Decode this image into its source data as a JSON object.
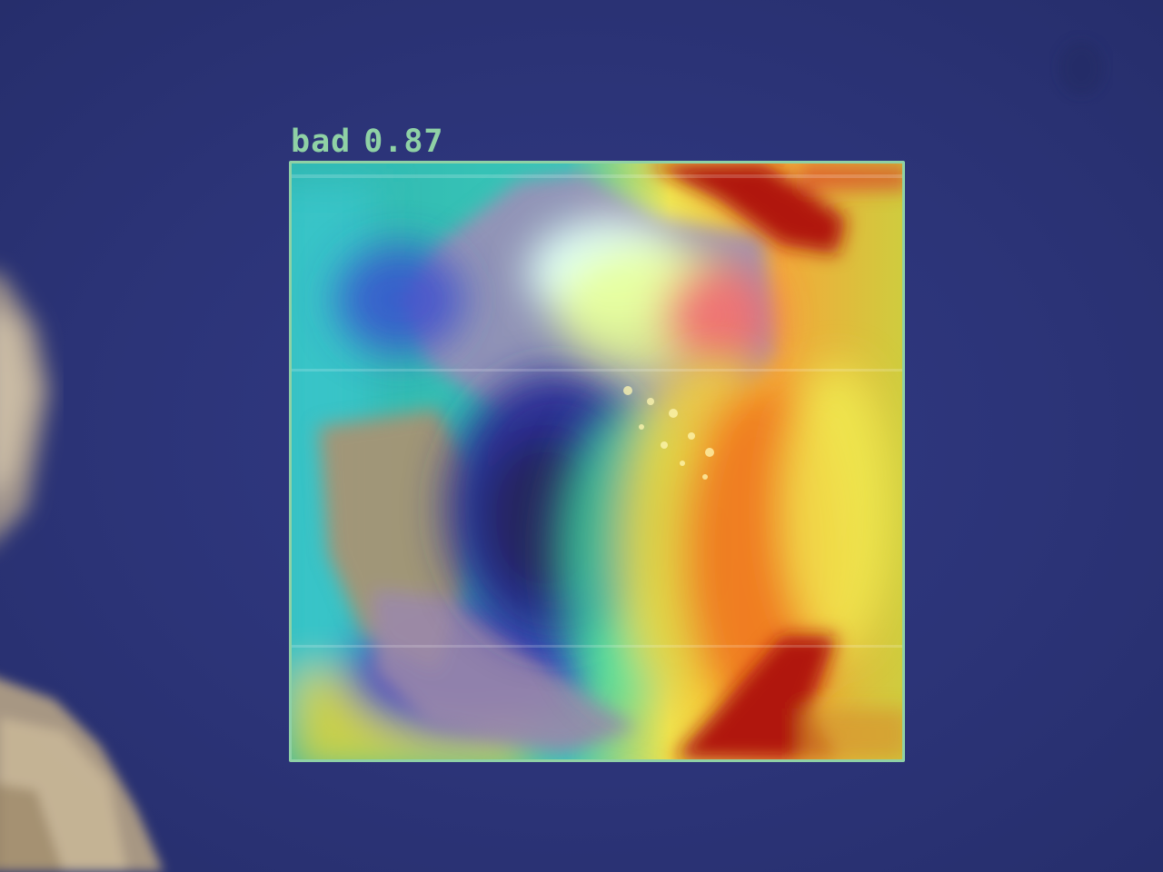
{
  "detection": {
    "class_label": "bad",
    "confidence": "0.87",
    "box_color": "#8fd1a5"
  },
  "image": {
    "background_color": "#2c3478",
    "overlay": "heatmap",
    "heatmap_colors": [
      "#1d2aa8",
      "#2fd3d0",
      "#f6ef4a",
      "#f58a20",
      "#b31313"
    ]
  }
}
